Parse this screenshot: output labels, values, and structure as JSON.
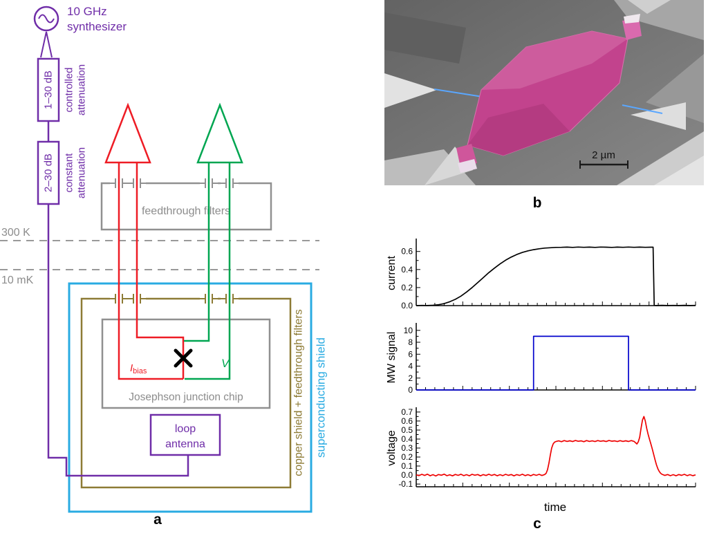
{
  "panel_a": {
    "label": "a",
    "synth_line1": "10 GHz",
    "synth_line2": "synthesizer",
    "atten1": "1–30 dB",
    "atten1_side1": "controlled",
    "atten1_side2": "attenuation",
    "atten2": "2–30 dB",
    "atten2_side1": "constant",
    "atten2_side2": "attenuation",
    "temp_hot": "300 K",
    "temp_cold": "10 mK",
    "feedthrough": "feedthrough filters",
    "chip": "Josephson junction chip",
    "i_bias_main": "I",
    "i_bias_sub": "bias",
    "v_label": "V",
    "antenna_line1": "loop",
    "antenna_line2": "antenna",
    "copper_label": "copper shield + feedthrough filters",
    "sc_label": "superconducting shield"
  },
  "panel_b": {
    "label": "b",
    "scale_label": "2 µm"
  },
  "panel_c": {
    "label": "c",
    "xlabel": "time"
  },
  "colors": {
    "purple": "#6f2da8",
    "gray": "#8c8c8c",
    "red": "#ee1c25",
    "green": "#00a651",
    "cyan": "#29abe2",
    "olive": "#8d7b35",
    "mw_blue": "#0000cc",
    "sem_pink": "#c2438d"
  },
  "chart_data": [
    {
      "type": "line",
      "ylabel": "current",
      "color": "#000000",
      "x_range": [
        0,
        1
      ],
      "ylim": [
        0,
        0.72
      ],
      "yticks": [
        0.0,
        0.2,
        0.4,
        0.6
      ],
      "ytick_labels": [
        "0.0",
        "0.2",
        "0.4",
        "0.6"
      ],
      "points": [
        [
          0,
          0
        ],
        [
          0.02,
          0.002
        ],
        [
          0.04,
          0.001
        ],
        [
          0.06,
          0.004
        ],
        [
          0.08,
          0.01
        ],
        [
          0.1,
          0.022
        ],
        [
          0.12,
          0.043
        ],
        [
          0.14,
          0.07
        ],
        [
          0.16,
          0.105
        ],
        [
          0.18,
          0.15
        ],
        [
          0.2,
          0.2
        ],
        [
          0.22,
          0.255
        ],
        [
          0.24,
          0.31
        ],
        [
          0.26,
          0.365
        ],
        [
          0.28,
          0.415
        ],
        [
          0.3,
          0.462
        ],
        [
          0.32,
          0.503
        ],
        [
          0.34,
          0.538
        ],
        [
          0.36,
          0.566
        ],
        [
          0.38,
          0.589
        ],
        [
          0.4,
          0.607
        ],
        [
          0.42,
          0.62
        ],
        [
          0.44,
          0.63
        ],
        [
          0.46,
          0.637
        ],
        [
          0.48,
          0.641
        ],
        [
          0.5,
          0.645
        ],
        [
          0.52,
          0.646
        ],
        [
          0.54,
          0.648
        ],
        [
          0.56,
          0.645
        ],
        [
          0.58,
          0.649
        ],
        [
          0.6,
          0.646
        ],
        [
          0.62,
          0.648
        ],
        [
          0.64,
          0.645
        ],
        [
          0.66,
          0.649
        ],
        [
          0.68,
          0.647
        ],
        [
          0.7,
          0.645
        ],
        [
          0.72,
          0.648
        ],
        [
          0.74,
          0.646
        ],
        [
          0.76,
          0.649
        ],
        [
          0.78,
          0.646
        ],
        [
          0.8,
          0.648
        ],
        [
          0.82,
          0.646
        ],
        [
          0.84,
          0.647
        ],
        [
          0.848,
          0.647
        ],
        [
          0.852,
          0.002
        ],
        [
          0.86,
          0.001
        ],
        [
          0.88,
          0.003
        ],
        [
          0.9,
          0.001
        ],
        [
          0.92,
          0.002
        ],
        [
          0.94,
          0.001
        ],
        [
          0.96,
          0.003
        ],
        [
          0.98,
          0.001
        ],
        [
          1,
          0.002
        ]
      ]
    },
    {
      "type": "line",
      "ylabel": "MW signal",
      "color": "#0000cc",
      "x_range": [
        0,
        1
      ],
      "ylim": [
        0,
        10.9
      ],
      "yticks": [
        0,
        2,
        4,
        6,
        8,
        10
      ],
      "ytick_labels": [
        "0",
        "2",
        "4",
        "6",
        "8",
        "10"
      ],
      "points": [
        [
          0,
          0
        ],
        [
          0.42,
          0
        ],
        [
          0.42,
          9
        ],
        [
          0.76,
          9
        ],
        [
          0.76,
          0
        ],
        [
          1,
          0
        ]
      ]
    },
    {
      "type": "line",
      "ylabel": "voltage",
      "xlabel": "time",
      "color": "#ee0000",
      "x_range": [
        0,
        1
      ],
      "ylim": [
        -0.13,
        0.73
      ],
      "yticks": [
        -0.1,
        0.0,
        0.1,
        0.2,
        0.3,
        0.4,
        0.5,
        0.6,
        0.7
      ],
      "ytick_labels": [
        "-0.1",
        "0.0",
        "0.1",
        "0.2",
        "0.3",
        "0.4",
        "0.5",
        "0.6",
        "0.7"
      ],
      "points": [
        [
          0,
          0.003
        ],
        [
          0.01,
          -0.006
        ],
        [
          0.02,
          0.008
        ],
        [
          0.03,
          -0.004
        ],
        [
          0.04,
          0.01
        ],
        [
          0.05,
          -0.008
        ],
        [
          0.06,
          0.004
        ],
        [
          0.07,
          -0.01
        ],
        [
          0.08,
          0.006
        ],
        [
          0.09,
          -0.002
        ],
        [
          0.1,
          0.01
        ],
        [
          0.11,
          -0.007
        ],
        [
          0.12,
          0.003
        ],
        [
          0.13,
          -0.009
        ],
        [
          0.14,
          0.007
        ],
        [
          0.15,
          -0.003
        ],
        [
          0.16,
          0.009
        ],
        [
          0.17,
          -0.006
        ],
        [
          0.18,
          0.004
        ],
        [
          0.19,
          -0.008
        ],
        [
          0.2,
          0.008
        ],
        [
          0.21,
          -0.002
        ],
        [
          0.22,
          0.006
        ],
        [
          0.23,
          -0.009
        ],
        [
          0.24,
          0.005
        ],
        [
          0.25,
          -0.005
        ],
        [
          0.26,
          0.009
        ],
        [
          0.27,
          -0.004
        ],
        [
          0.28,
          0.007
        ],
        [
          0.29,
          -0.008
        ],
        [
          0.3,
          0.004
        ],
        [
          0.31,
          -0.006
        ],
        [
          0.32,
          0.008
        ],
        [
          0.33,
          -0.003
        ],
        [
          0.34,
          0.006
        ],
        [
          0.35,
          -0.009
        ],
        [
          0.36,
          0.005
        ],
        [
          0.37,
          -0.004
        ],
        [
          0.38,
          0.009
        ],
        [
          0.39,
          -0.006
        ],
        [
          0.4,
          0.004
        ],
        [
          0.41,
          -0.008
        ],
        [
          0.42,
          0.007
        ],
        [
          0.43,
          -0.003
        ],
        [
          0.44,
          0.008
        ],
        [
          0.45,
          -0.005
        ],
        [
          0.46,
          0.006
        ],
        [
          0.465,
          0.02
        ],
        [
          0.47,
          0.06
        ],
        [
          0.475,
          0.13
        ],
        [
          0.48,
          0.22
        ],
        [
          0.485,
          0.3
        ],
        [
          0.49,
          0.345
        ],
        [
          0.495,
          0.365
        ],
        [
          0.5,
          0.372
        ],
        [
          0.51,
          0.38
        ],
        [
          0.52,
          0.371
        ],
        [
          0.53,
          0.383
        ],
        [
          0.54,
          0.374
        ],
        [
          0.55,
          0.381
        ],
        [
          0.56,
          0.372
        ],
        [
          0.57,
          0.384
        ],
        [
          0.58,
          0.375
        ],
        [
          0.59,
          0.38
        ],
        [
          0.6,
          0.371
        ],
        [
          0.61,
          0.383
        ],
        [
          0.62,
          0.374
        ],
        [
          0.63,
          0.38
        ],
        [
          0.64,
          0.372
        ],
        [
          0.65,
          0.383
        ],
        [
          0.66,
          0.375
        ],
        [
          0.67,
          0.381
        ],
        [
          0.68,
          0.372
        ],
        [
          0.69,
          0.384
        ],
        [
          0.7,
          0.376
        ],
        [
          0.71,
          0.38
        ],
        [
          0.72,
          0.372
        ],
        [
          0.73,
          0.382
        ],
        [
          0.74,
          0.374
        ],
        [
          0.75,
          0.381
        ],
        [
          0.76,
          0.373
        ],
        [
          0.77,
          0.383
        ],
        [
          0.78,
          0.374
        ],
        [
          0.785,
          0.36
        ],
        [
          0.79,
          0.345
        ],
        [
          0.795,
          0.37
        ],
        [
          0.8,
          0.42
        ],
        [
          0.805,
          0.52
        ],
        [
          0.81,
          0.61
        ],
        [
          0.815,
          0.65
        ],
        [
          0.82,
          0.6
        ],
        [
          0.825,
          0.52
        ],
        [
          0.83,
          0.455
        ],
        [
          0.835,
          0.4
        ],
        [
          0.84,
          0.345
        ],
        [
          0.845,
          0.29
        ],
        [
          0.85,
          0.23
        ],
        [
          0.855,
          0.17
        ],
        [
          0.86,
          0.115
        ],
        [
          0.865,
          0.07
        ],
        [
          0.87,
          0.04
        ],
        [
          0.875,
          0.02
        ],
        [
          0.88,
          0.008
        ],
        [
          0.89,
          -0.004
        ],
        [
          0.9,
          0.006
        ],
        [
          0.91,
          -0.007
        ],
        [
          0.92,
          0.004
        ],
        [
          0.93,
          -0.008
        ],
        [
          0.94,
          0.006
        ],
        [
          0.95,
          -0.003
        ],
        [
          0.96,
          0.008
        ],
        [
          0.97,
          -0.006
        ],
        [
          0.98,
          0.004
        ],
        [
          0.99,
          -0.007
        ],
        [
          1,
          0.002
        ]
      ]
    }
  ]
}
